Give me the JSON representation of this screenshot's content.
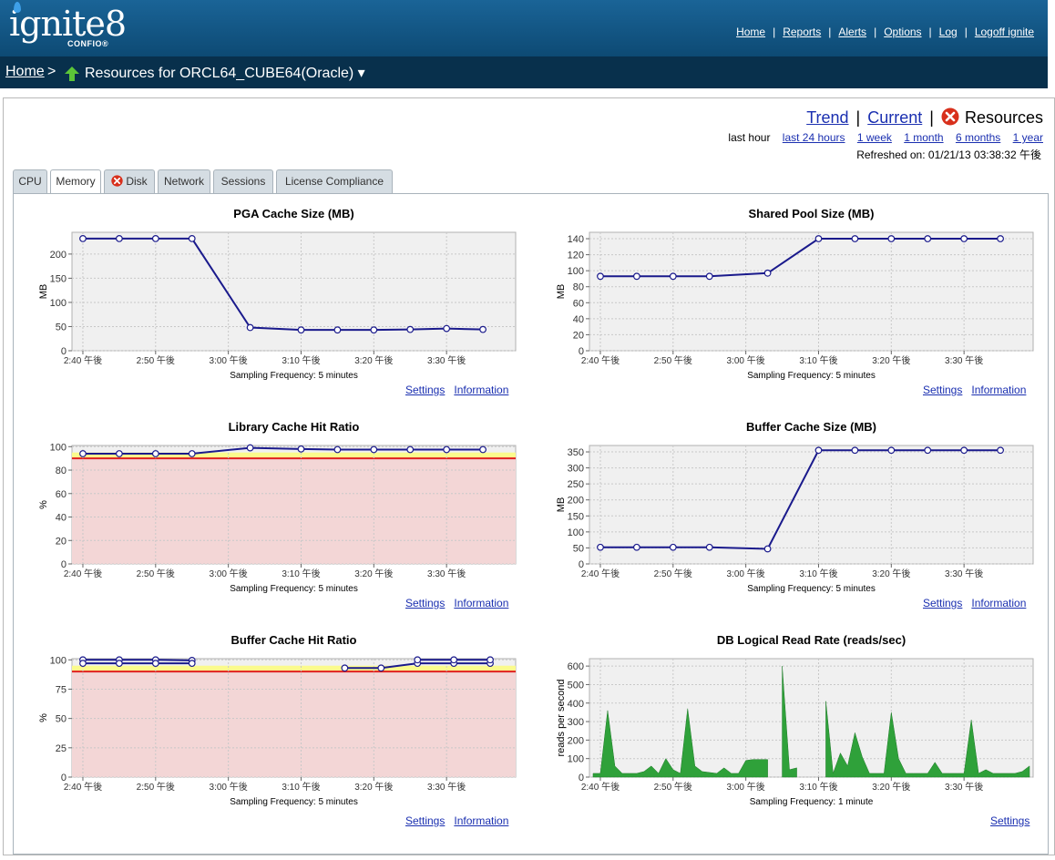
{
  "header": {
    "logo_text": "ignite8",
    "logo_sub": "CONFIO®",
    "nav": [
      "Home",
      "Reports",
      "Alerts",
      "Options",
      "Log",
      "Logoff ignite"
    ]
  },
  "breadcrumb": {
    "home": "Home",
    "separator": ">",
    "title": "Resources for ORCL64_CUBE64(Oracle) ▾"
  },
  "views": {
    "trend": "Trend",
    "current": "Current",
    "resources": "Resources"
  },
  "time_ranges": {
    "selected": "last hour",
    "links": [
      "last 24 hours",
      "1 week",
      "1 month",
      "6 months",
      "1 year"
    ]
  },
  "refreshed": "Refreshed on: 01/21/13 03:38:32 午後",
  "tabs": [
    "CPU",
    "Memory",
    "Disk",
    "Network",
    "Sessions",
    "License Compliance"
  ],
  "links": {
    "settings": "Settings",
    "information": "Information"
  },
  "chart_data": [
    {
      "type": "line",
      "title": "PGA Cache Size (MB)",
      "ylabel": "MB",
      "xlabel": "Sampling Frequency: 5 minutes",
      "x_ticks": [
        "2:40 午後",
        "2:50 午後",
        "3:00 午後",
        "3:10 午後",
        "3:20 午後",
        "3:30 午後"
      ],
      "ylim": [
        0,
        245
      ],
      "y_ticks": [
        0,
        50,
        100,
        150,
        200
      ],
      "x": [
        0,
        5,
        10,
        15,
        23,
        30,
        35,
        40,
        45,
        50,
        55
      ],
      "values": [
        232,
        232,
        232,
        232,
        48,
        43,
        43,
        43,
        44,
        46,
        44
      ]
    },
    {
      "type": "line",
      "title": "Shared Pool Size (MB)",
      "ylabel": "MB",
      "xlabel": "Sampling Frequency: 5 minutes",
      "x_ticks": [
        "2:40 午後",
        "2:50 午後",
        "3:00 午後",
        "3:10 午後",
        "3:20 午後",
        "3:30 午後"
      ],
      "ylim": [
        0,
        148
      ],
      "y_ticks": [
        0,
        20,
        40,
        60,
        80,
        100,
        120,
        140
      ],
      "x": [
        0,
        5,
        10,
        15,
        23,
        30,
        35,
        40,
        45,
        50,
        55
      ],
      "values": [
        93,
        93,
        93,
        93,
        97,
        140,
        140,
        140,
        140,
        140,
        140
      ]
    },
    {
      "type": "line",
      "title": "Library Cache Hit Ratio",
      "ylabel": "%",
      "xlabel": "Sampling Frequency: 5 minutes",
      "x_ticks": [
        "2:40 午後",
        "2:50 午後",
        "3:00 午後",
        "3:10 午後",
        "3:20 午後",
        "3:30 午後"
      ],
      "ylim": [
        0,
        101
      ],
      "y_ticks": [
        0,
        20,
        40,
        60,
        80,
        100
      ],
      "x": [
        0,
        5,
        10,
        15,
        23,
        30,
        35,
        40,
        45,
        50,
        55
      ],
      "values": [
        94,
        94,
        94,
        94,
        99,
        98,
        97.5,
        97.5,
        97.5,
        97.5,
        97.5
      ],
      "threshold_warning": 95,
      "threshold_critical": 90
    },
    {
      "type": "line",
      "title": "Buffer Cache Size (MB)",
      "ylabel": "MB",
      "xlabel": "Sampling Frequency: 5 minutes",
      "x_ticks": [
        "2:40 午後",
        "2:50 午後",
        "3:00 午後",
        "3:10 午後",
        "3:20 午後",
        "3:30 午後"
      ],
      "ylim": [
        0,
        370
      ],
      "y_ticks": [
        0,
        50,
        100,
        150,
        200,
        250,
        300,
        350
      ],
      "x": [
        0,
        5,
        10,
        15,
        23,
        30,
        35,
        40,
        45,
        50,
        55
      ],
      "values": [
        52,
        52,
        52,
        52,
        47,
        355,
        355,
        355,
        355,
        355,
        355
      ]
    },
    {
      "type": "line",
      "title": "Buffer Cache Hit Ratio",
      "ylabel": "%",
      "xlabel": "Sampling Frequency: 5 minutes",
      "x_ticks": [
        "2:40 午後",
        "2:50 午後",
        "3:00 午後",
        "3:10 午後",
        "3:20 午後",
        "3:30 午後"
      ],
      "ylim": [
        0,
        101
      ],
      "y_ticks": [
        0,
        25,
        50,
        75,
        100
      ],
      "threshold_warning": 95,
      "threshold_critical": 90,
      "series": [
        {
          "x": [
            0,
            5,
            10,
            15
          ],
          "values": [
            100,
            100,
            100,
            99.5
          ]
        },
        {
          "x": [
            0,
            5,
            10,
            15
          ],
          "values": [
            97,
            97,
            97,
            97
          ]
        },
        {
          "x": [
            36,
            41,
            46,
            51,
            56
          ],
          "values": [
            93,
            93,
            97,
            97,
            97
          ]
        },
        {
          "x": [
            46,
            51,
            56
          ],
          "values": [
            100,
            100,
            100
          ]
        }
      ]
    },
    {
      "type": "area",
      "title": "DB Logical Read Rate (reads/sec)",
      "ylabel": "reads per second",
      "xlabel": "Sampling Frequency: 1 minute",
      "x_ticks": [
        "2:40 午後",
        "2:50 午後",
        "3:00 午後",
        "3:10 午後",
        "3:20 午後",
        "3:30 午後"
      ],
      "ylim": [
        0,
        640
      ],
      "y_ticks": [
        0,
        100,
        200,
        300,
        400,
        500,
        600
      ],
      "segments": [
        {
          "x": [
            -1,
            0,
            1,
            2,
            3,
            4,
            5,
            6,
            7,
            8,
            9,
            10,
            11,
            12,
            13,
            14,
            15,
            16,
            17,
            18,
            19,
            20,
            21,
            22,
            23
          ],
          "values": [
            20,
            20,
            360,
            60,
            20,
            20,
            20,
            30,
            60,
            20,
            100,
            40,
            20,
            370,
            60,
            30,
            25,
            20,
            50,
            20,
            20,
            90,
            95,
            95,
            95
          ]
        },
        {
          "x": [
            25,
            26,
            27
          ],
          "values": [
            600,
            40,
            50
          ]
        },
        {
          "x": [
            31,
            32,
            33,
            34,
            35,
            36,
            37,
            38,
            39,
            40,
            41,
            42,
            43,
            44,
            45,
            46,
            47,
            48,
            49,
            50,
            51,
            52,
            53,
            54,
            55,
            56,
            57,
            58,
            59
          ],
          "values": [
            410,
            20,
            130,
            60,
            240,
            110,
            20,
            20,
            20,
            350,
            100,
            20,
            20,
            20,
            20,
            80,
            20,
            20,
            20,
            20,
            310,
            20,
            40,
            20,
            20,
            20,
            20,
            30,
            60
          ]
        }
      ]
    }
  ]
}
